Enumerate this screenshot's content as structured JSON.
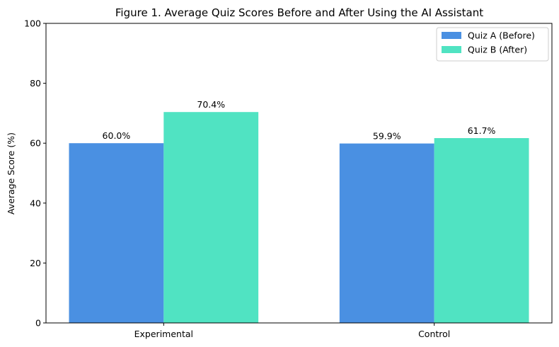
{
  "chart_data": {
    "type": "bar",
    "title": "Figure 1. Average Quiz Scores Before and After Using the AI Assistant",
    "xlabel": "",
    "ylabel": "Average Score (%)",
    "ylim": [
      0,
      100
    ],
    "yticks": [
      0,
      20,
      40,
      60,
      80,
      100
    ],
    "categories": [
      "Experimental",
      "Control"
    ],
    "series": [
      {
        "name": "Quiz A (Before)",
        "color": "#4a90e2",
        "values": [
          60.0,
          59.9
        ],
        "labels": [
          "60.0%",
          "59.9%"
        ]
      },
      {
        "name": "Quiz B (After)",
        "color": "#50e3c2",
        "values": [
          70.4,
          61.7
        ],
        "labels": [
          "70.4%",
          "61.7%"
        ]
      }
    ],
    "legend": {
      "position": "top-right"
    },
    "grid": false
  }
}
